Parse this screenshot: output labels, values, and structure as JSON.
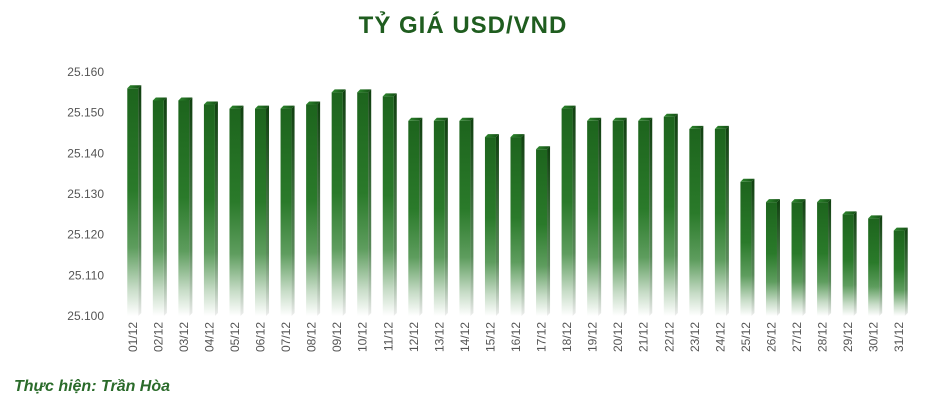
{
  "chart_data": {
    "type": "bar",
    "title": "TỶ GIÁ USD/VND",
    "xlabel": "",
    "ylabel": "",
    "ylim": [
      25100,
      25160
    ],
    "yticks": [
      "25.160",
      "25.150",
      "25.140",
      "25.130",
      "25.120",
      "25.110",
      "25.100"
    ],
    "ytick_values": [
      25160,
      25150,
      25140,
      25130,
      25120,
      25110,
      25100
    ],
    "categories": [
      "01/12",
      "02/12",
      "03/12",
      "04/12",
      "05/12",
      "06/12",
      "07/12",
      "08/12",
      "09/12",
      "10/12",
      "11/12",
      "12/12",
      "13/12",
      "14/12",
      "15/12",
      "16/12",
      "17/12",
      "18/12",
      "19/12",
      "20/12",
      "21/12",
      "22/12",
      "23/12",
      "24/12",
      "25/12",
      "26/12",
      "27/12",
      "28/12",
      "29/12",
      "30/12",
      "31/12"
    ],
    "values": [
      25156,
      25153,
      25153,
      25152,
      25151,
      25151,
      25151,
      25152,
      25155,
      25155,
      25154,
      25148,
      25148,
      25148,
      25144,
      25144,
      25141,
      25151,
      25148,
      25148,
      25148,
      25149,
      25146,
      25146,
      25133,
      25128,
      25128,
      25128,
      25125,
      25124,
      25121
    ],
    "bar_color": "#1e6b1e",
    "grid": false,
    "legend": "none"
  },
  "credit": "Thực hiện: Trần Hòa"
}
